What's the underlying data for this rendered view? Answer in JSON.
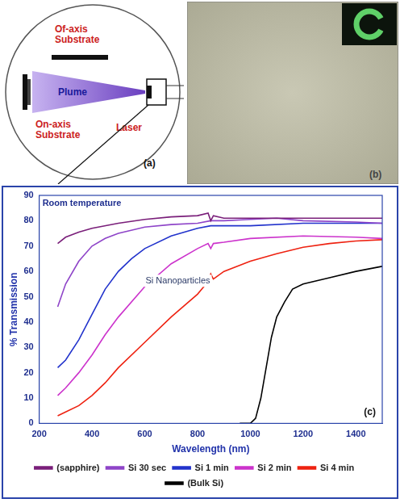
{
  "diagram": {
    "label": "(a)",
    "off_axis_substrate": "Of-axis Substrate",
    "plume": "Plume",
    "on_axis_substrate": "On-axis Substrate",
    "laser": "Laser"
  },
  "micrograph": {
    "label": "(b)"
  },
  "chart_data": {
    "type": "line",
    "panel_label": "(c)",
    "annotations": [
      "Room temperature",
      "Si Nanoparticles"
    ],
    "xlabel": "Wavelength (nm)",
    "ylabel": "% Transmission",
    "xlim": [
      200,
      1500
    ],
    "xticks": [
      200,
      400,
      600,
      800,
      1000,
      1200,
      1400
    ],
    "ylim": [
      0,
      90
    ],
    "yticks": [
      0,
      10,
      20,
      30,
      40,
      50,
      60,
      70,
      80,
      90
    ],
    "grid": false,
    "legend": "bottom",
    "series": [
      {
        "name": "(sapphire)",
        "color": "#7a1f7a",
        "x": [
          270,
          300,
          350,
          400,
          500,
          600,
          700,
          800,
          840,
          850,
          860,
          900,
          1000,
          1200,
          1400,
          1500
        ],
        "values": [
          71,
          73.5,
          75.5,
          77,
          79,
          80.5,
          81.5,
          82,
          83,
          80,
          82,
          81,
          81,
          81,
          81,
          81
        ]
      },
      {
        "name": "Si 30 sec",
        "color": "#8e44c8",
        "x": [
          270,
          300,
          350,
          400,
          450,
          500,
          600,
          700,
          800,
          850,
          900,
          1000,
          1100,
          1200,
          1400,
          1500
        ],
        "values": [
          46,
          55,
          64,
          70,
          73,
          75,
          77.5,
          78.5,
          79,
          80,
          80,
          80.5,
          81,
          80,
          79.5,
          79
        ]
      },
      {
        "name": "Si 1 min",
        "color": "#2233cc",
        "x": [
          270,
          300,
          350,
          400,
          450,
          500,
          550,
          600,
          700,
          800,
          850,
          900,
          1000,
          1200,
          1400,
          1500
        ],
        "values": [
          22,
          25,
          33,
          43,
          53,
          60,
          65,
          69,
          74,
          77,
          78,
          78,
          78,
          79,
          79,
          79
        ]
      },
      {
        "name": "Si 2 min",
        "color": "#cc33cc",
        "x": [
          270,
          300,
          350,
          400,
          450,
          500,
          600,
          700,
          800,
          840,
          850,
          860,
          900,
          1000,
          1200,
          1400,
          1500
        ],
        "values": [
          11,
          14,
          20,
          27,
          35,
          42,
          54,
          63,
          69,
          71,
          69,
          71,
          71.5,
          73,
          74,
          73.5,
          73
        ]
      },
      {
        "name": "Si 4 min",
        "color": "#ee2211",
        "x": [
          270,
          300,
          350,
          400,
          450,
          500,
          600,
          700,
          800,
          840,
          850,
          860,
          900,
          1000,
          1100,
          1200,
          1300,
          1400,
          1500
        ],
        "values": [
          3,
          4.5,
          7,
          11,
          16,
          22,
          32,
          42,
          51,
          56,
          59,
          57,
          60,
          64,
          67,
          69.5,
          71,
          72,
          72.5
        ]
      },
      {
        "name": "(Bulk Si)",
        "color": "#000000",
        "x": [
          960,
          1000,
          1020,
          1040,
          1060,
          1080,
          1100,
          1130,
          1160,
          1200,
          1300,
          1400,
          1500
        ],
        "values": [
          0,
          0,
          2,
          10,
          22,
          34,
          42,
          48,
          53,
          55,
          57.5,
          60,
          62
        ]
      }
    ]
  }
}
